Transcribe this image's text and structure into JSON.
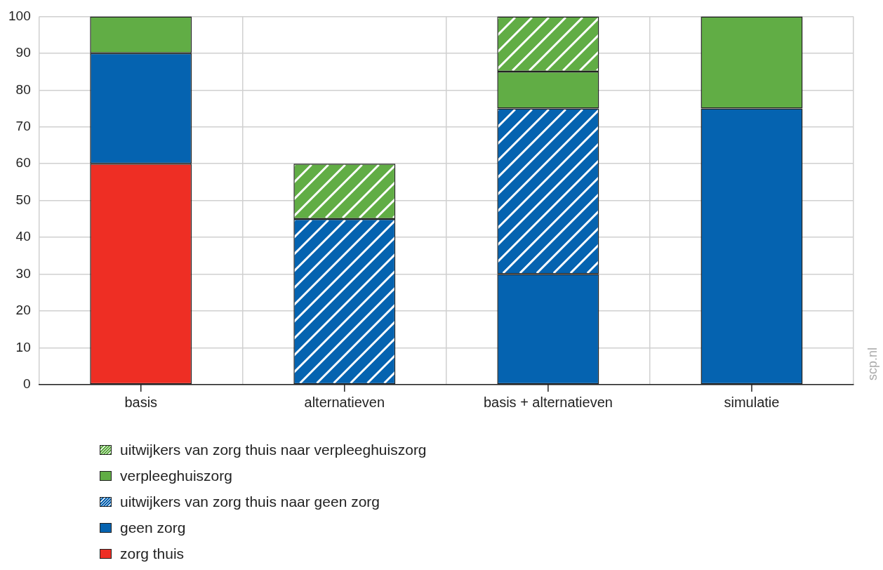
{
  "chart_data": {
    "type": "bar",
    "stacked": true,
    "categories": [
      "basis",
      "alternatieven",
      "basis + alternatieven",
      "simulatie"
    ],
    "series": [
      {
        "name": "zorg thuis",
        "color": "#ee2e24",
        "values": [
          60,
          null,
          null,
          null
        ]
      },
      {
        "name": "geen zorg",
        "color": "#0563b0",
        "values": [
          30,
          null,
          30,
          75
        ]
      },
      {
        "name": "uitwijkers van zorg thuis naar geen zorg",
        "color": "#0563b0",
        "values": [
          null,
          45,
          45,
          null
        ]
      },
      {
        "name": "verpleeghuiszorg",
        "color": "#61ad45",
        "values": [
          10,
          null,
          10,
          25
        ]
      },
      {
        "name": "uitwijkers van zorg thuis naar verpleeghuiszorg",
        "color": "#61ad45",
        "values": [
          null,
          15,
          15,
          null
        ]
      }
    ],
    "ylim": [
      0,
      100
    ],
    "yticks": [
      0,
      10,
      20,
      30,
      40,
      50,
      60,
      70,
      80,
      90,
      100
    ],
    "grid": true,
    "legend": "bottom left",
    "annotations": [
      "scp.nl"
    ]
  }
}
